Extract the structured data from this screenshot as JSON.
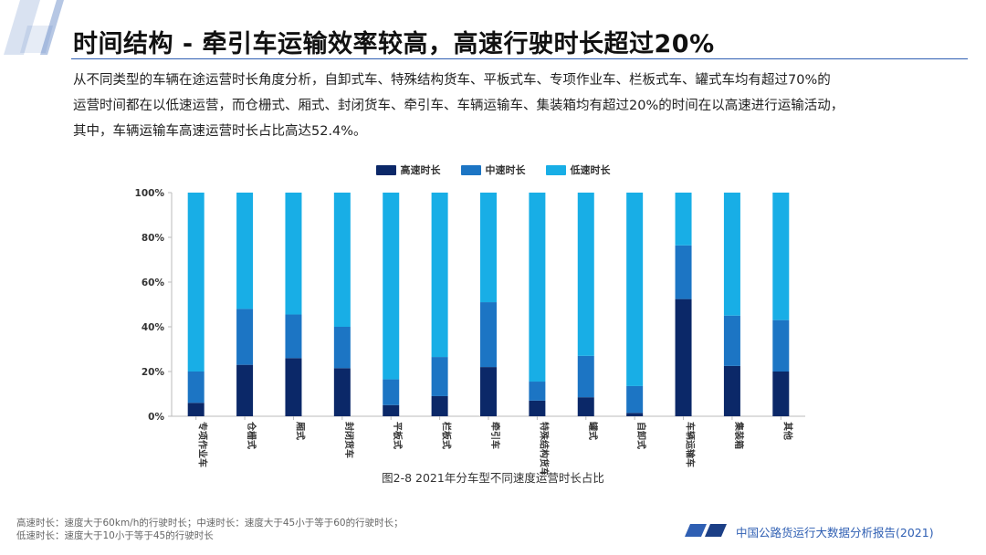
{
  "title": "时间结构 - 牵引车运输效率较高，高速行驶时长超过20%",
  "body_text": [
    "从不同类型的车辆在途运营时长角度分析，自卸式车、特殊结构货车、平板式车、专项作业车、栏板式车、罐式车均有超过70%的",
    "运营时间都在以低速运营，而仓栅式、厢式、封闭货车、牵引车、车辆运输车、集装箱均有超过20%的时间在以高速进行运输活动，",
    "其中，车辆运输车高速运营时长占比高达52.4%。"
  ],
  "caption": "图2-8 2021年分车型不同速度运营时长占比",
  "footnote": [
    "高速时长：速度大于60km/h的行驶时长；中速时长：速度大于45小于等于60的行驶时长；",
    "低速时长：速度大于10小于等于45的行驶时长"
  ],
  "source": "中国公路货运行大数据分析报告(2021)",
  "colors": {
    "high": "#0b2868",
    "mid": "#1c75c4",
    "low": "#18aee6",
    "accent": "#2f5fb3"
  },
  "chart_data": {
    "type": "bar",
    "stacked": true,
    "categories": [
      "专项作业车",
      "仓栅式",
      "厢式",
      "封闭货车",
      "平板式",
      "栏板式",
      "牵引车",
      "特殊结构货车",
      "罐式",
      "自卸式",
      "车辆运输车",
      "集装箱",
      "其他"
    ],
    "series": [
      {
        "name": "高速时长",
        "color": "#0b2868",
        "values": [
          6,
          23,
          26,
          21.5,
          5,
          9,
          22,
          7,
          8.5,
          1.5,
          52.4,
          22.5,
          20
        ]
      },
      {
        "name": "中速时长",
        "color": "#1c75c4",
        "values": [
          14,
          25,
          19.5,
          18.5,
          11.5,
          17.5,
          29,
          8.5,
          18.5,
          12,
          24,
          22.5,
          23
        ]
      },
      {
        "name": "低速时长",
        "color": "#18aee6",
        "values": [
          80,
          52,
          54.5,
          60,
          83.5,
          73.5,
          49,
          84.5,
          73,
          86.5,
          23.6,
          55,
          57
        ]
      }
    ],
    "yticks": [
      "0%",
      "20%",
      "40%",
      "60%",
      "80%",
      "100%"
    ],
    "ylim": [
      0,
      100
    ],
    "legend_position": "top-center",
    "grid": false
  }
}
